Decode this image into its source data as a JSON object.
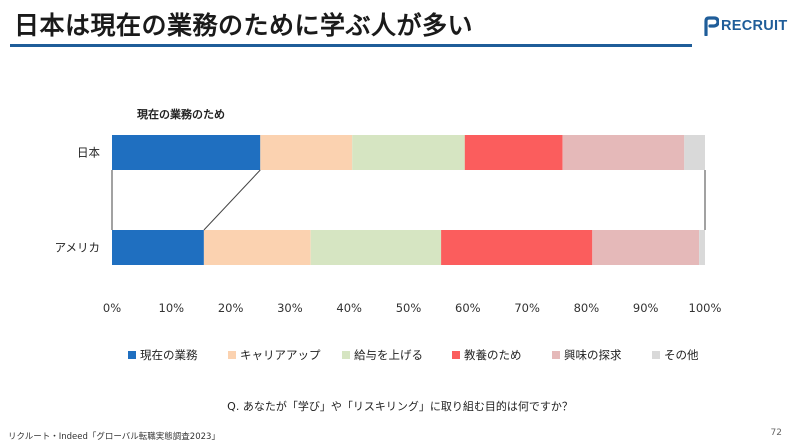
{
  "header": {
    "title": "日本は現在の業務のために学ぶ人が多い",
    "logo_text": "RECRUIT"
  },
  "colors": {
    "accent": "#1f5d99",
    "series": [
      "#1f6fc0",
      "#fbd2b0",
      "#d6e5c2",
      "#fb5d5d",
      "#e5b9b9",
      "#d9d9d9"
    ]
  },
  "chart_data": {
    "type": "bar",
    "orientation": "horizontal",
    "stacked": true,
    "title": "",
    "annotation": "現在の業務のため",
    "categories": [
      "日本",
      "アメリカ"
    ],
    "series": [
      {
        "name": "現在の業務",
        "values": [
          25,
          15.5
        ]
      },
      {
        "name": "キャリアアップ",
        "values": [
          15.5,
          18
        ]
      },
      {
        "name": "給与を上げる",
        "values": [
          19,
          22
        ]
      },
      {
        "name": "教養のため",
        "values": [
          16.5,
          25.5
        ]
      },
      {
        "name": "興味の探求",
        "values": [
          20.5,
          18
        ]
      },
      {
        "name": "その他",
        "values": [
          3.5,
          1
        ]
      }
    ],
    "xlim": [
      0,
      100
    ],
    "xticks": [
      "0%",
      "10%",
      "20%",
      "30%",
      "40%",
      "50%",
      "60%",
      "70%",
      "80%",
      "90%",
      "100%"
    ],
    "xlabel": "",
    "ylabel": "",
    "legend_position": "bottom"
  },
  "footer": {
    "question": "Q. あなたが「学び」や「リスキリング」に取り組む目的は何ですか？",
    "source": "リクルート・Indeed「グローバル転職実態調査2023」",
    "page_number": "72"
  }
}
